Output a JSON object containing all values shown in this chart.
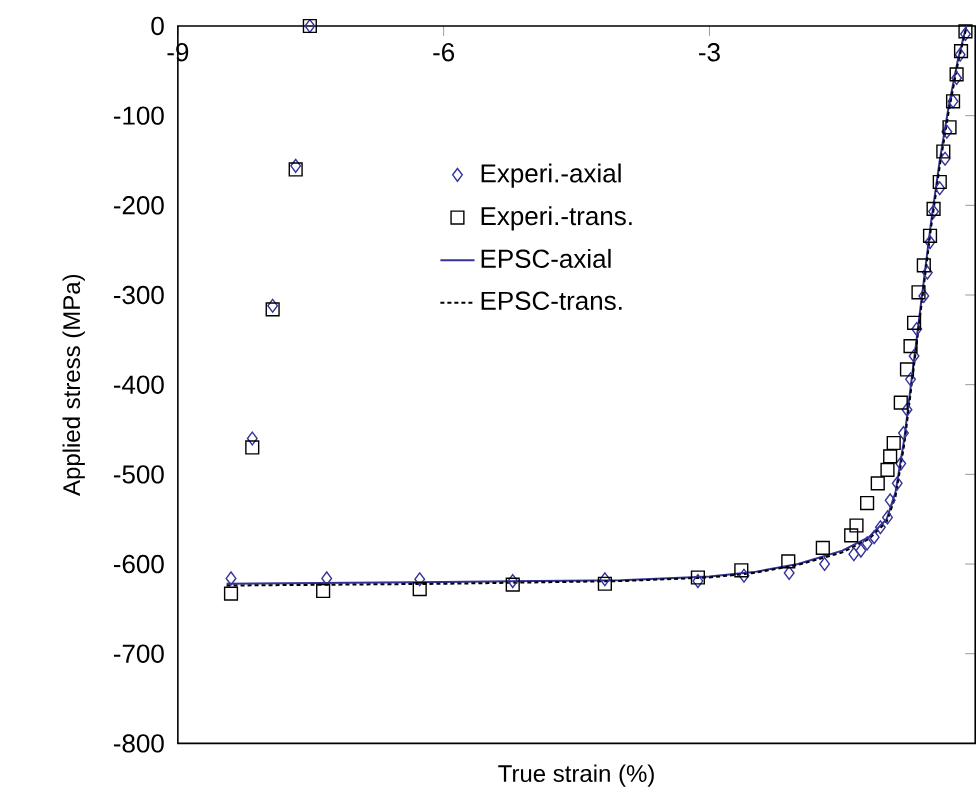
{
  "chart_data": {
    "type": "scatter",
    "xlabel": "True strain (%)",
    "ylabel": "Applied stress (MPa)",
    "xlim": [
      -9,
      0
    ],
    "ylim": [
      -800,
      0
    ],
    "xticks": [
      -9,
      -6,
      -3
    ],
    "yticks": [
      -800,
      -700,
      -600,
      -500,
      -400,
      -300,
      -200,
      -100,
      0
    ],
    "grid": false,
    "legend": "center",
    "series": [
      {
        "name": "Experi.-axial",
        "marker": "diamond",
        "color": "#333399",
        "x": [
          -7.51,
          -7.67,
          -7.93,
          -8.16,
          -8.4,
          -7.32,
          -6.27,
          -5.22,
          -4.18,
          -3.13,
          -2.61,
          -2.1,
          -1.7,
          -1.37,
          -1.29,
          -1.22,
          -1.14,
          -1.07,
          -0.99,
          -0.96,
          -0.88,
          -0.84,
          -0.81,
          -0.77,
          -0.73,
          -0.69,
          -0.66,
          -0.58,
          -0.54,
          -0.51,
          -0.47,
          -0.4,
          -0.34,
          -0.32,
          -0.25,
          -0.21,
          -0.17,
          -0.11
        ],
        "values": [
          0,
          -156,
          -312,
          -460,
          -616,
          -616,
          -617,
          -619,
          -617,
          -619,
          -613,
          -610,
          -600,
          -589,
          -585,
          -577,
          -570,
          -559,
          -548,
          -529,
          -510,
          -488,
          -454,
          -428,
          -394,
          -368,
          -338,
          -301,
          -275,
          -241,
          -207,
          -181,
          -148,
          -118,
          -84,
          -58,
          -32,
          -9
        ]
      },
      {
        "name": "Experi.-trans.",
        "marker": "square",
        "color": "#000000",
        "x": [
          -7.51,
          -7.67,
          -7.93,
          -8.16,
          -8.4,
          -7.36,
          -6.27,
          -5.22,
          -4.18,
          -3.13,
          -2.64,
          -2.11,
          -1.72,
          -1.4,
          -1.34,
          -1.22,
          -1.1,
          -0.99,
          -0.96,
          -0.92,
          -0.84,
          -0.77,
          -0.73,
          -0.69,
          -0.64,
          -0.58,
          -0.51,
          -0.47,
          -0.4,
          -0.36,
          -0.29,
          -0.25,
          -0.21,
          -0.16,
          -0.11
        ],
        "values": [
          0,
          -160,
          -316,
          -470,
          -633,
          -630,
          -628,
          -623,
          -622,
          -615,
          -607,
          -597,
          -582,
          -568,
          -557,
          -532,
          -510,
          -495,
          -480,
          -465,
          -420,
          -383,
          -357,
          -331,
          -297,
          -267,
          -234,
          -204,
          -174,
          -140,
          -113,
          -84,
          -54,
          -28,
          -6
        ]
      },
      {
        "name": "EPSC-axial",
        "type": "line",
        "line_style": "solid",
        "color": "#333399",
        "x": [
          -8.45,
          -6,
          -4,
          -3,
          -2.5,
          -2,
          -1.5,
          -1.2,
          -1,
          -0.9,
          -0.8,
          -0.7,
          -0.6,
          -0.5,
          -0.4,
          -0.3,
          -0.2,
          -0.1
        ],
        "values": [
          -622,
          -620,
          -618,
          -614,
          -609,
          -600,
          -585,
          -570,
          -550,
          -520,
          -460,
          -380,
          -300,
          -220,
          -150,
          -90,
          -40,
          0
        ]
      },
      {
        "name": "EPSC-trans.",
        "type": "line",
        "line_style": "dotted",
        "color": "#000000",
        "x": [
          -8.45,
          -6,
          -4,
          -3,
          -2.5,
          -2,
          -1.5,
          -1.2,
          -1,
          -0.9,
          -0.8,
          -0.7,
          -0.6,
          -0.5,
          -0.4,
          -0.3,
          -0.2,
          -0.1
        ],
        "values": [
          -624,
          -622,
          -619,
          -615,
          -610,
          -601,
          -587,
          -572,
          -553,
          -525,
          -466,
          -386,
          -306,
          -226,
          -156,
          -96,
          -44,
          -2
        ]
      }
    ]
  }
}
